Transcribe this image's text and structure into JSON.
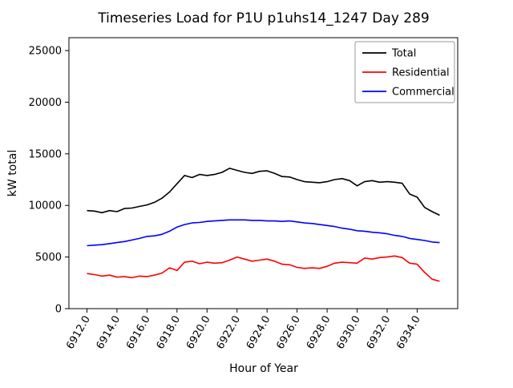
{
  "chart_data": {
    "type": "line",
    "title": "Timeseries Load for P1U p1uhs14_1247  Day 289",
    "xlabel": "Hour of Year",
    "ylabel": "kW total",
    "xlim": [
      6910.8,
      6936.7
    ],
    "ylim": [
      0,
      26250
    ],
    "xticks": [
      6912,
      6914,
      6916,
      6918,
      6920,
      6922,
      6924,
      6926,
      6928,
      6930,
      6932,
      6934
    ],
    "xtick_labels": [
      "6912.0",
      "6914.0",
      "6916.0",
      "6918.0",
      "6920.0",
      "6922.0",
      "6924.0",
      "6926.0",
      "6928.0",
      "6930.0",
      "6932.0",
      "6934.0"
    ],
    "yticks": [
      0,
      5000,
      10000,
      15000,
      20000,
      25000
    ],
    "ytick_labels": [
      "0",
      "5000",
      "10000",
      "15000",
      "20000",
      "25000"
    ],
    "grid": false,
    "legend_position": "upper right",
    "x": [
      6912.0,
      6912.5,
      6913.0,
      6913.5,
      6914.0,
      6914.5,
      6915.0,
      6915.5,
      6916.0,
      6916.5,
      6917.0,
      6917.5,
      6918.0,
      6918.5,
      6919.0,
      6919.5,
      6920.0,
      6920.5,
      6921.0,
      6921.5,
      6922.0,
      6922.5,
      6923.0,
      6923.5,
      6924.0,
      6924.5,
      6925.0,
      6925.5,
      6926.0,
      6926.5,
      6927.0,
      6927.5,
      6928.0,
      6928.5,
      6929.0,
      6929.5,
      6930.0,
      6930.5,
      6931.0,
      6931.5,
      6932.0,
      6932.5,
      6933.0,
      6933.5,
      6934.0,
      6934.5,
      6935.0,
      6935.5
    ],
    "series": [
      {
        "name": "Total",
        "color": "#000000",
        "values": [
          9500,
          9450,
          9300,
          9500,
          9400,
          9700,
          9750,
          9900,
          10050,
          10300,
          10700,
          11300,
          12100,
          12900,
          12700,
          13000,
          12900,
          13000,
          13200,
          13600,
          13400,
          13200,
          13100,
          13300,
          13350,
          13100,
          12800,
          12750,
          12500,
          12300,
          12250,
          12200,
          12300,
          12500,
          12600,
          12400,
          11900,
          12300,
          12400,
          12250,
          12300,
          12250,
          12150,
          11100,
          10800,
          9800,
          9400,
          9050
        ]
      },
      {
        "name": "Residential",
        "color": "#ff0000",
        "values": [
          3400,
          3300,
          3150,
          3250,
          3050,
          3100,
          3000,
          3150,
          3100,
          3250,
          3450,
          3950,
          3700,
          4500,
          4600,
          4350,
          4500,
          4400,
          4450,
          4700,
          5000,
          4800,
          4600,
          4700,
          4800,
          4600,
          4300,
          4250,
          4000,
          3900,
          3950,
          3900,
          4100,
          4400,
          4500,
          4450,
          4400,
          4900,
          4800,
          4950,
          5000,
          5100,
          4950,
          4400,
          4300,
          3500,
          2850,
          2650
        ]
      },
      {
        "name": "Commercial",
        "color": "#0000ff",
        "values": [
          6100,
          6150,
          6200,
          6300,
          6400,
          6500,
          6650,
          6800,
          7000,
          7050,
          7200,
          7500,
          7900,
          8150,
          8300,
          8350,
          8450,
          8500,
          8550,
          8600,
          8600,
          8600,
          8550,
          8550,
          8500,
          8500,
          8450,
          8500,
          8400,
          8300,
          8250,
          8150,
          8050,
          7950,
          7800,
          7700,
          7550,
          7500,
          7400,
          7350,
          7250,
          7100,
          7000,
          6800,
          6700,
          6600,
          6450,
          6400
        ]
      }
    ]
  }
}
